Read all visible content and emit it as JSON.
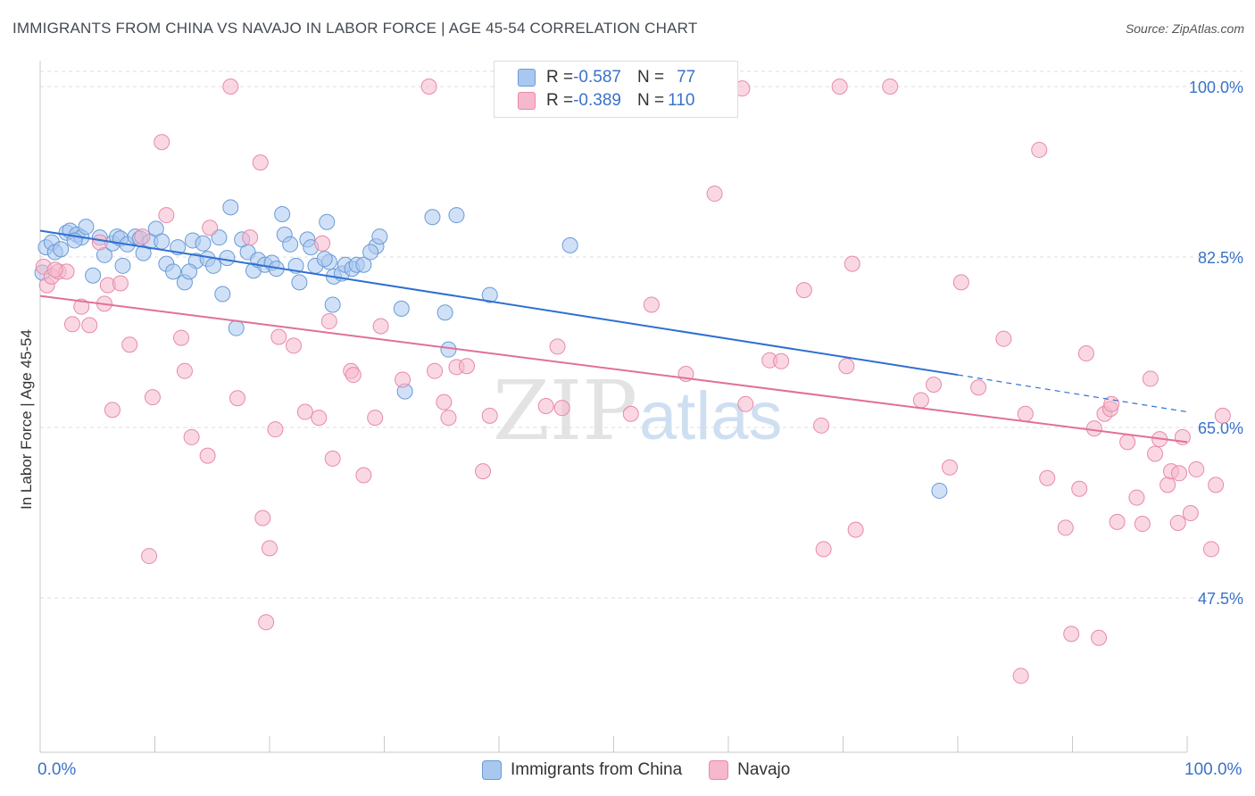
{
  "title": "IMMIGRANTS FROM CHINA VS NAVAJO IN LABOR FORCE | AGE 45-54 CORRELATION CHART",
  "source": "Source: ZipAtlas.com",
  "watermark": {
    "zip": "ZIP",
    "atlas": "atlas"
  },
  "legend": {
    "rows": [
      {
        "r_label": "R = ",
        "r_value": "-0.587",
        "n_label": "N = ",
        "n_value": "77",
        "color": "#a9c8f0",
        "border": "#6a9ad6"
      },
      {
        "r_label": "R = ",
        "r_value": "-0.389",
        "n_label": "N = ",
        "n_value": "110",
        "color": "#f6b8cc",
        "border": "#e78aa8"
      }
    ]
  },
  "bottom_legend": [
    {
      "label": "Immigrants from China",
      "color": "#a9c8f0",
      "border": "#6a9ad6"
    },
    {
      "label": "Navajo",
      "color": "#f6b8cc",
      "border": "#e78aa8"
    }
  ],
  "chart_data": {
    "type": "scatter",
    "title": "IMMIGRANTS FROM CHINA VS NAVAJO IN LABOR FORCE | AGE 45-54 CORRELATION CHART",
    "xlabel": "",
    "ylabel": "In Labor Force | Age 45-54",
    "xlim": [
      0,
      100
    ],
    "ylim": [
      30.5,
      102
    ],
    "x_tick_labels": [
      "0.0%",
      "100.0%"
    ],
    "y_ticks": [
      {
        "value": 100,
        "label": "100.0%"
      },
      {
        "value": 82.5,
        "label": "82.5%"
      },
      {
        "value": 65,
        "label": "65.0%"
      },
      {
        "value": 47.5,
        "label": "47.5%"
      }
    ],
    "grid": true,
    "series": [
      {
        "name": "Immigrants from China",
        "color": "#a9c8f0",
        "line_color": "#2f6fd0",
        "r": -0.587,
        "n": 77,
        "trend": {
          "x0": 0,
          "y0": 85.2,
          "x1": 80,
          "y1": 70.4,
          "dash_to_x": 100,
          "dash_to_y": 66.6
        },
        "points": [
          [
            0.5,
            83.5
          ],
          [
            1,
            84
          ],
          [
            1.3,
            83
          ],
          [
            1.8,
            83.3
          ],
          [
            2.3,
            85
          ],
          [
            2.6,
            85.2
          ],
          [
            3.2,
            84.8
          ],
          [
            3.6,
            84.5
          ],
          [
            4,
            85.6
          ],
          [
            4.6,
            80.6
          ],
          [
            5.2,
            84.5
          ],
          [
            5.6,
            82.7
          ],
          [
            6.3,
            83.9
          ],
          [
            6.7,
            84.6
          ],
          [
            7,
            84.4
          ],
          [
            7.2,
            81.6
          ],
          [
            7.6,
            83.8
          ],
          [
            8.3,
            84.6
          ],
          [
            8.7,
            84.4
          ],
          [
            9,
            82.9
          ],
          [
            9.6,
            84.1
          ],
          [
            10.1,
            85.4
          ],
          [
            10.6,
            84.1
          ],
          [
            11,
            81.8
          ],
          [
            11.6,
            81
          ],
          [
            12,
            83.5
          ],
          [
            12.6,
            79.9
          ],
          [
            13.3,
            84.2
          ],
          [
            13.6,
            82.1
          ],
          [
            14.2,
            83.9
          ],
          [
            14.6,
            82.3
          ],
          [
            15.1,
            81.6
          ],
          [
            15.6,
            84.5
          ],
          [
            15.9,
            78.7
          ],
          [
            16.3,
            82.4
          ],
          [
            16.6,
            87.6
          ],
          [
            17.1,
            75.2
          ],
          [
            17.6,
            84.3
          ],
          [
            18.1,
            83
          ],
          [
            18.6,
            81.1
          ],
          [
            19,
            82.2
          ],
          [
            19.6,
            81.7
          ],
          [
            20.2,
            81.9
          ],
          [
            20.6,
            81.3
          ],
          [
            21.3,
            84.8
          ],
          [
            21.1,
            86.9
          ],
          [
            21.8,
            83.8
          ],
          [
            22.3,
            81.6
          ],
          [
            22.6,
            79.9
          ],
          [
            23.3,
            84.3
          ],
          [
            23.6,
            83.5
          ],
          [
            24,
            81.6
          ],
          [
            25,
            86.1
          ],
          [
            25.2,
            82
          ],
          [
            25.6,
            80.5
          ],
          [
            25.5,
            77.6
          ],
          [
            26.3,
            80.8
          ],
          [
            26.6,
            81.7
          ],
          [
            27.2,
            81.3
          ],
          [
            27.6,
            81.7
          ],
          [
            28.2,
            81.7
          ],
          [
            29.3,
            83.6
          ],
          [
            29.6,
            84.6
          ],
          [
            31.5,
            77.2
          ],
          [
            31.8,
            68.7
          ],
          [
            34.2,
            86.6
          ],
          [
            35.3,
            76.8
          ],
          [
            35.6,
            73
          ],
          [
            36.3,
            86.8
          ],
          [
            39.2,
            78.6
          ],
          [
            46.2,
            83.7
          ],
          [
            78.4,
            58.5
          ],
          [
            13,
            81
          ],
          [
            24.8,
            82.3
          ],
          [
            3,
            84.2
          ],
          [
            0.2,
            80.9
          ],
          [
            28.8,
            83
          ]
        ]
      },
      {
        "name": "Navajo",
        "color": "#f6b8cc",
        "line_color": "#e0709a",
        "r": -0.389,
        "n": 110,
        "trend": {
          "x0": 0,
          "y0": 78.5,
          "x1": 100,
          "y1": 63.5
        },
        "points": [
          [
            0.3,
            81.5
          ],
          [
            0.6,
            79.6
          ],
          [
            1,
            80.5
          ],
          [
            1.6,
            81
          ],
          [
            2.3,
            81
          ],
          [
            2.8,
            75.6
          ],
          [
            3.6,
            77.4
          ],
          [
            4.3,
            75.5
          ],
          [
            5.2,
            84
          ],
          [
            5.6,
            77.7
          ],
          [
            5.9,
            79.6
          ],
          [
            6.3,
            66.8
          ],
          [
            7,
            79.8
          ],
          [
            7.8,
            73.5
          ],
          [
            8.9,
            84.6
          ],
          [
            9.5,
            51.8
          ],
          [
            9.8,
            68.1
          ],
          [
            10.6,
            94.3
          ],
          [
            11,
            86.8
          ],
          [
            12.3,
            74.2
          ],
          [
            12.6,
            70.8
          ],
          [
            13.2,
            64
          ],
          [
            14.6,
            62.1
          ],
          [
            14.8,
            85.5
          ],
          [
            16.6,
            100
          ],
          [
            17.2,
            68
          ],
          [
            18.3,
            84.5
          ],
          [
            19.2,
            92.2
          ],
          [
            19.7,
            45
          ],
          [
            20,
            52.6
          ],
          [
            20.5,
            64.8
          ],
          [
            20.8,
            74.3
          ],
          [
            22.1,
            73.4
          ],
          [
            23.1,
            66.6
          ],
          [
            24.3,
            66
          ],
          [
            24.6,
            83.9
          ],
          [
            25.2,
            75.9
          ],
          [
            25.5,
            61.8
          ],
          [
            27.1,
            70.8
          ],
          [
            27.3,
            70.4
          ],
          [
            28.2,
            60.1
          ],
          [
            29.2,
            66
          ],
          [
            31.6,
            69.9
          ],
          [
            33.9,
            100
          ],
          [
            34.4,
            70.8
          ],
          [
            35.2,
            67.6
          ],
          [
            35.6,
            66
          ],
          [
            36.3,
            71.2
          ],
          [
            37.2,
            71.3
          ],
          [
            38.6,
            60.5
          ],
          [
            39.2,
            66.2
          ],
          [
            40.3,
            100
          ],
          [
            44.1,
            67.2
          ],
          [
            45.1,
            73.3
          ],
          [
            45.5,
            67
          ],
          [
            51.5,
            66.4
          ],
          [
            53.3,
            77.6
          ],
          [
            56.3,
            70.5
          ],
          [
            58.8,
            89
          ],
          [
            61.2,
            99.8
          ],
          [
            61.5,
            67.4
          ],
          [
            63.6,
            71.9
          ],
          [
            64.6,
            71.8
          ],
          [
            66.6,
            79.1
          ],
          [
            68.1,
            65.2
          ],
          [
            68.3,
            52.5
          ],
          [
            69.7,
            100
          ],
          [
            70.3,
            71.3
          ],
          [
            71.1,
            54.5
          ],
          [
            70.8,
            81.8
          ],
          [
            74.1,
            100
          ],
          [
            76.8,
            67.8
          ],
          [
            77.9,
            69.4
          ],
          [
            79.3,
            60.9
          ],
          [
            80.3,
            79.9
          ],
          [
            81.8,
            69.1
          ],
          [
            84,
            74.1
          ],
          [
            85.9,
            66.4
          ],
          [
            87.1,
            93.5
          ],
          [
            87.8,
            59.8
          ],
          [
            89.4,
            54.7
          ],
          [
            89.9,
            43.8
          ],
          [
            90.6,
            58.7
          ],
          [
            91.2,
            72.6
          ],
          [
            91.9,
            64.9
          ],
          [
            92.3,
            43.4
          ],
          [
            92.8,
            66.4
          ],
          [
            93.3,
            66.9
          ],
          [
            93.4,
            67.4
          ],
          [
            93.9,
            55.3
          ],
          [
            94.8,
            63.5
          ],
          [
            95.6,
            57.8
          ],
          [
            96.1,
            55.1
          ],
          [
            96.8,
            70
          ],
          [
            97.2,
            62.3
          ],
          [
            97.6,
            63.8
          ],
          [
            98.3,
            59.1
          ],
          [
            98.6,
            60.5
          ],
          [
            99.3,
            60.3
          ],
          [
            99.6,
            64
          ],
          [
            100.3,
            56.2
          ],
          [
            100.8,
            60.7
          ],
          [
            102.1,
            52.5
          ],
          [
            102.5,
            59.1
          ],
          [
            103.1,
            66.2
          ],
          [
            99.2,
            55.2
          ],
          [
            85.5,
            39.5
          ],
          [
            1.3,
            81.2
          ],
          [
            19.4,
            55.7
          ],
          [
            29.7,
            75.4
          ]
        ]
      }
    ]
  }
}
